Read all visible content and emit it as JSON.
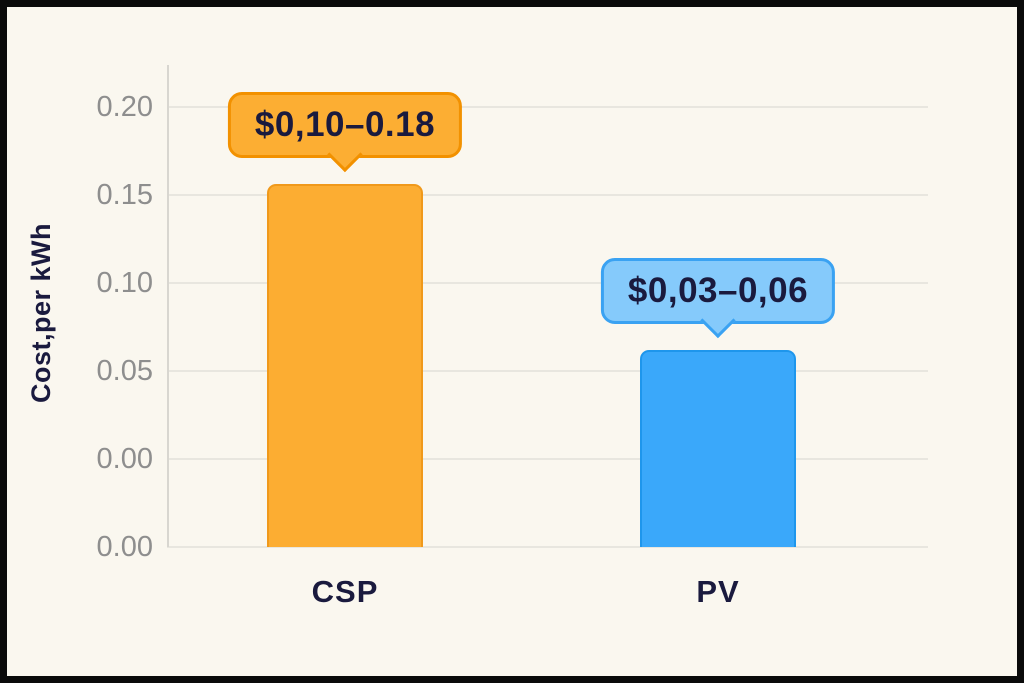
{
  "chart_data": {
    "type": "bar",
    "title": "",
    "xlabel": "",
    "ylabel": "Cost,per kWh",
    "categories": [
      "CSP",
      "PV"
    ],
    "values": [
      0.156,
      0.062
    ],
    "value_unit": "$ per kWh",
    "ranges": [
      [
        0.1,
        0.18
      ],
      [
        0.03,
        0.06
      ]
    ],
    "y_ticks": [
      "0.20",
      "0.15",
      "0.10",
      "0.05",
      "0.00",
      "0.00"
    ],
    "ylim": [
      0,
      0.225
    ],
    "grid": "horizontal",
    "legend": "none",
    "series": [
      {
        "name": "CSP",
        "value": 0.156,
        "callout": "$0,10–0.18",
        "bar_fill": "#fcad32",
        "bar_border": "#f0991b",
        "callout_fill": "#fcae33",
        "callout_border": "#f29100"
      },
      {
        "name": "PV",
        "value": 0.062,
        "callout": "$0,03–0,06",
        "bar_fill": "#3aa8fa",
        "bar_border": "#1e96ec",
        "callout_fill": "#85cafb",
        "callout_border": "#3aa2f2"
      }
    ]
  },
  "theme": {
    "background": "#faf7ef",
    "frame_border": "#0a0a0a",
    "text_navy": "#1a1a3e",
    "tick_gray": "#8e8e8e",
    "gridline": "#e8e6df",
    "axis_spine": "#d8d6d0"
  }
}
